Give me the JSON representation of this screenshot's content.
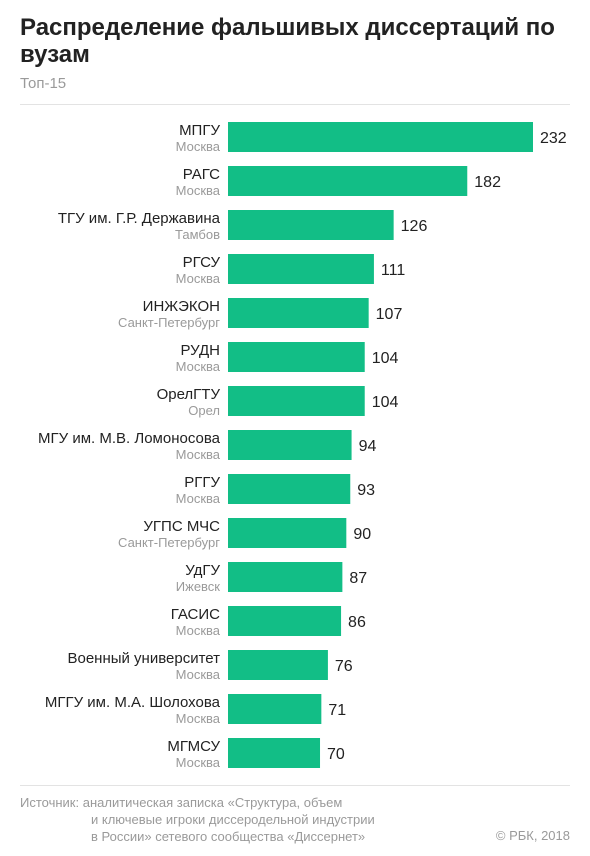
{
  "header": {
    "title": "Распределение фальшивых диссертаций по вузам",
    "subtitle": "Топ-15"
  },
  "chart_data": {
    "type": "bar",
    "orientation": "horizontal",
    "bar_color": "#12be86",
    "categories": [
      {
        "name": "МПГУ",
        "city": "Москва"
      },
      {
        "name": "РАГС",
        "city": "Москва"
      },
      {
        "name": "ТГУ им. Г.Р. Державина",
        "city": "Тамбов"
      },
      {
        "name": "РГСУ",
        "city": "Москва"
      },
      {
        "name": "ИНЖЭКОН",
        "city": "Санкт-Петербург"
      },
      {
        "name": "РУДН",
        "city": "Москва"
      },
      {
        "name": "ОрелГТУ",
        "city": "Орел"
      },
      {
        "name": "МГУ им. М.В. Ломоносова",
        "city": "Москва"
      },
      {
        "name": "РГГУ",
        "city": "Москва"
      },
      {
        "name": "УГПС МЧС",
        "city": "Санкт-Петербург"
      },
      {
        "name": "УдГУ",
        "city": "Ижевск"
      },
      {
        "name": "ГАСИС",
        "city": "Москва"
      },
      {
        "name": "Военный университет",
        "city": "Москва"
      },
      {
        "name": "МГГУ им. М.А. Шолохова",
        "city": "Москва"
      },
      {
        "name": "МГМСУ",
        "city": "Москва"
      }
    ],
    "values": [
      232,
      182,
      126,
      111,
      107,
      104,
      104,
      94,
      93,
      90,
      87,
      86,
      76,
      71,
      70
    ],
    "xlim": [
      0,
      232
    ],
    "grid": false,
    "legend": "none"
  },
  "footer": {
    "source_line1": "Источник: аналитическая записка «Структура, объем",
    "source_line2": "и ключевые игроки диссеродельной индустрии",
    "source_line3": "в России» сетевого сообщества «Диссернет»",
    "copyright": "© РБК, 2018"
  }
}
